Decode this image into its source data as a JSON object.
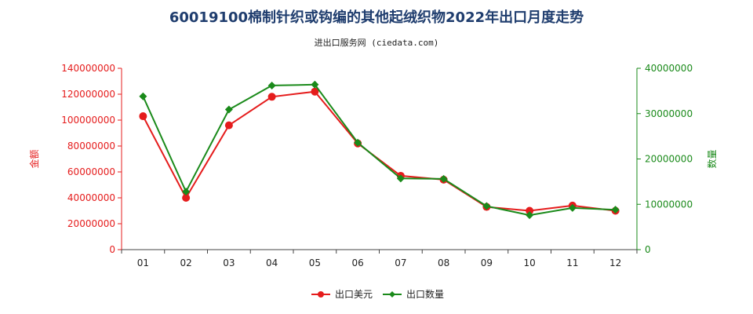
{
  "chart_data": {
    "type": "line",
    "title": "60019100棉制针织或钩编的其他起绒织物2022年出口月度走势",
    "subtitle": "进出口服务网 (ciedata.com)",
    "categories": [
      "01",
      "02",
      "03",
      "04",
      "05",
      "06",
      "07",
      "08",
      "09",
      "10",
      "11",
      "12"
    ],
    "y_left": {
      "label": "金额",
      "ylim": [
        0,
        140000000
      ],
      "ticks": [
        "0",
        "20000000",
        "40000000",
        "60000000",
        "80000000",
        "100000000",
        "120000000",
        "140000000"
      ],
      "color": "#e51c1c"
    },
    "y_right": {
      "label": "数量",
      "ylim": [
        0,
        40000000
      ],
      "ticks": [
        "0",
        "10000000",
        "20000000",
        "30000000",
        "40000000"
      ],
      "color": "#1a8a1a"
    },
    "series": [
      {
        "name": "出口美元",
        "axis": "left",
        "color": "#e51c1c",
        "marker": "circle",
        "values": [
          103000000,
          40000000,
          96000000,
          118000000,
          122000000,
          82000000,
          57000000,
          54000000,
          33000000,
          30000000,
          34000000,
          30000000
        ]
      },
      {
        "name": "出口数量",
        "axis": "right",
        "color": "#1a8a1a",
        "marker": "diamond",
        "values": [
          33800000,
          12800000,
          30900000,
          36200000,
          36400000,
          23600000,
          15700000,
          15600000,
          9600000,
          7600000,
          9200000,
          8800000
        ]
      }
    ],
    "legend_position": "bottom-center",
    "grid": false
  }
}
